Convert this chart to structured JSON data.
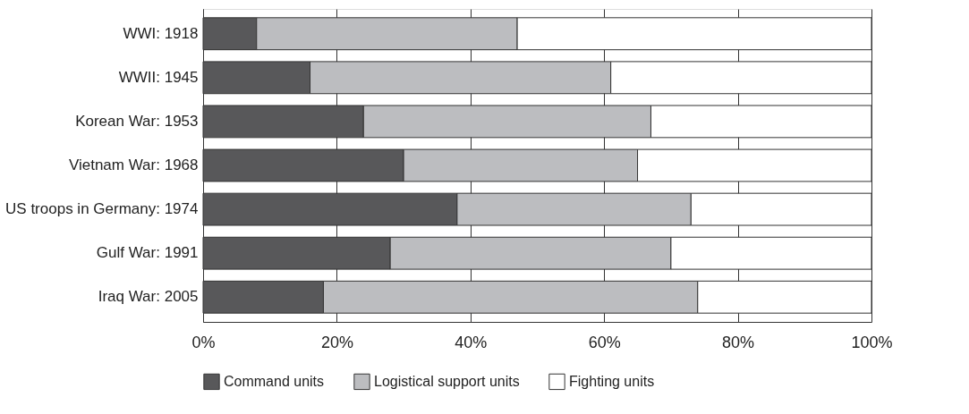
{
  "chart_data": {
    "type": "bar",
    "orientation": "horizontal",
    "stacked": true,
    "categories": [
      "WWI: 1918",
      "WWII: 1945",
      "Korean War: 1953",
      "Vietnam War: 1968",
      "US troops in Germany: 1974",
      "Gulf War: 1991",
      "Iraq War: 2005"
    ],
    "series": [
      {
        "name": "Command units",
        "color": "#58585a",
        "values": [
          8,
          16,
          24,
          30,
          38,
          28,
          18
        ]
      },
      {
        "name": "Logistical support units",
        "color": "#bcbdc0",
        "values": [
          39,
          45,
          43,
          35,
          35,
          42,
          56
        ]
      },
      {
        "name": "Fighting units",
        "color": "#ffffff",
        "values": [
          53,
          39,
          33,
          35,
          27,
          30,
          26
        ]
      }
    ],
    "xlim": [
      0,
      100
    ],
    "xticks": [
      {
        "value": 0,
        "label": "0%"
      },
      {
        "value": 20,
        "label": "20%"
      },
      {
        "value": 40,
        "label": "40%"
      },
      {
        "value": 60,
        "label": "60%"
      },
      {
        "value": 80,
        "label": "80%"
      },
      {
        "value": 100,
        "label": "100%"
      }
    ],
    "grid": "x",
    "legend": "bottom"
  }
}
